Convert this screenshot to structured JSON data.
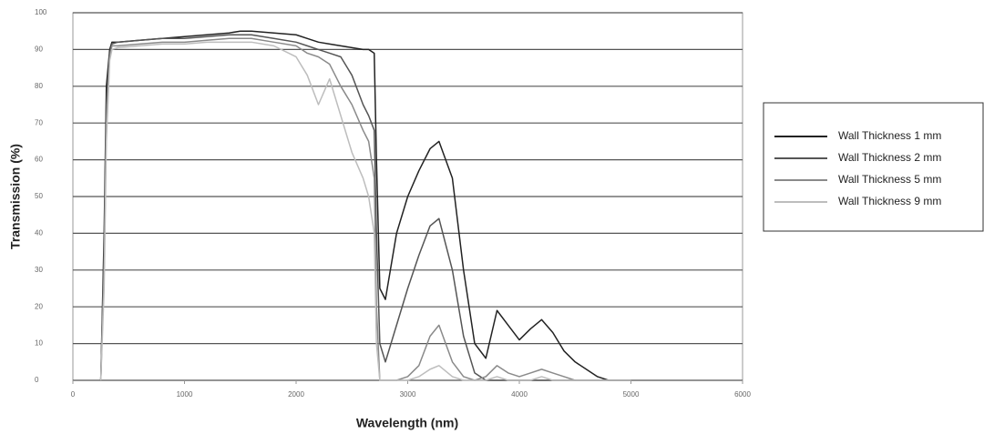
{
  "chart_data": {
    "type": "line",
    "x_label": "Wavelength (nm)",
    "y_label": "Transmission (%)",
    "x": [
      250,
      280,
      300,
      330,
      350,
      400,
      600,
      800,
      1000,
      1200,
      1400,
      1500,
      1600,
      1800,
      2000,
      2100,
      2200,
      2300,
      2400,
      2500,
      2600,
      2650,
      2700,
      2720,
      2750,
      2800,
      2900,
      3000,
      3100,
      3200,
      3280,
      3400,
      3500,
      3600,
      3700,
      3800,
      3900,
      4000,
      4100,
      4200,
      4300,
      4400,
      4500,
      4600,
      4700,
      4800,
      5000
    ],
    "series": [
      {
        "name": "Wall Thickness 1 mm",
        "color": "#222222",
        "values": [
          0,
          40,
          80,
          90,
          92,
          92,
          92.5,
          93,
          93.5,
          94,
          94.5,
          95,
          95,
          94.5,
          94,
          93,
          92,
          91.5,
          91,
          90.5,
          90,
          90,
          89,
          60,
          25,
          22,
          40,
          50,
          57,
          63,
          65,
          55,
          30,
          10,
          6,
          19,
          15,
          11,
          14,
          16.5,
          13,
          8,
          5,
          3,
          1,
          0,
          0
        ]
      },
      {
        "name": "Wall Thickness 2 mm",
        "color": "#555555",
        "values": [
          0,
          35,
          75,
          89,
          91.5,
          92,
          92.5,
          93,
          93,
          93.5,
          94,
          94,
          94,
          93,
          92,
          91,
          90,
          89,
          88,
          83,
          75,
          72,
          68,
          40,
          10,
          5,
          15,
          25,
          34,
          42,
          44,
          30,
          12,
          2,
          0,
          0,
          0,
          0,
          0,
          0,
          0,
          0,
          0,
          0,
          0,
          0,
          0
        ]
      },
      {
        "name": "Wall Thickness 5 mm",
        "color": "#8a8a8a",
        "values": [
          0,
          30,
          70,
          88,
          91,
          91,
          91.5,
          92,
          92,
          92.5,
          93,
          93,
          93,
          92,
          91,
          89,
          88,
          86,
          80,
          75,
          68,
          65,
          55,
          20,
          0,
          0,
          0,
          1,
          4,
          12,
          15,
          5,
          1,
          0,
          1,
          4,
          2,
          1,
          2,
          3,
          2,
          1,
          0,
          0,
          0,
          0,
          0
        ]
      },
      {
        "name": "Wall Thickness 9 mm",
        "color": "#bdbdbd",
        "values": [
          0,
          25,
          65,
          87,
          90,
          90.5,
          91,
          91.5,
          91.5,
          92,
          92,
          92,
          92,
          91,
          88,
          83,
          75,
          82,
          72,
          62,
          55,
          50,
          40,
          10,
          0,
          0,
          0,
          0,
          1,
          3,
          4,
          1,
          0,
          0,
          0,
          1,
          0,
          0,
          0,
          1,
          0,
          0,
          0,
          0,
          0,
          0,
          0
        ]
      }
    ],
    "xlim": [
      0,
      6000
    ],
    "xticks": [
      0,
      1000,
      2000,
      3000,
      4000,
      5000,
      6000
    ],
    "ylim": [
      0,
      100
    ],
    "yticks": [
      0,
      10,
      20,
      30,
      40,
      50,
      60,
      70,
      80,
      90,
      100
    ],
    "grid": true,
    "legend": "right"
  }
}
